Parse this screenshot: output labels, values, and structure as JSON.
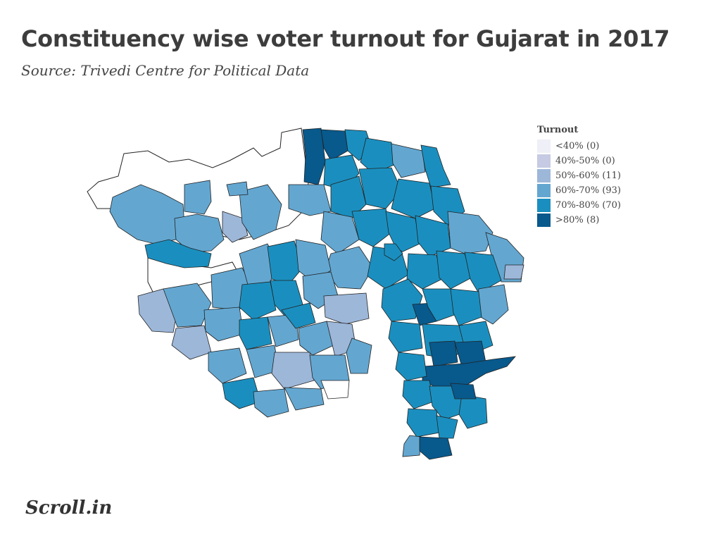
{
  "header": {
    "title": "Constituency wise voter turnout for Gujarat in 2017",
    "subtitle": "Source: Trivedi Centre for Political Data"
  },
  "legend": {
    "title": "Turnout",
    "items": [
      {
        "label": "<40% (0)",
        "color": "#efeff7"
      },
      {
        "label": "40%-50% (0)",
        "color": "#c6cae3"
      },
      {
        "label": "50%-60% (11)",
        "color": "#9db7d9"
      },
      {
        "label": "60%-70% (93)",
        "color": "#63a7d1"
      },
      {
        "label": "70%-80% (70)",
        "color": "#1a8fbf"
      },
      {
        "label": ">80% (8)",
        "color": "#08598c"
      }
    ]
  },
  "map": {
    "region": "Gujarat",
    "outline_color": "#222222"
  },
  "footer": {
    "brand": "Scroll.in"
  }
}
